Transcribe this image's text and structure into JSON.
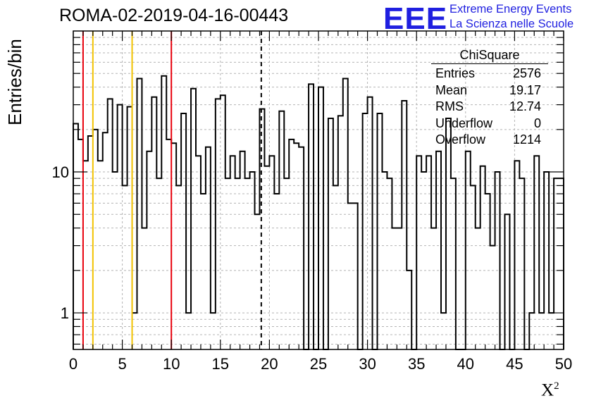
{
  "header": {
    "run_title": "ROMA-02-2019-04-16-00443",
    "logo_text": "EEE",
    "logo_line1": "Extreme Energy Events",
    "logo_line2": "La Scienza nelle Scuole"
  },
  "stats_box": {
    "title": "ChiSquare",
    "rows": [
      {
        "label": "Entries",
        "value": "2576"
      },
      {
        "label": "Mean",
        "value": "19.17"
      },
      {
        "label": "RMS",
        "value": "12.74"
      },
      {
        "label": "Underflow",
        "value": "0"
      },
      {
        "label": "Overflow",
        "value": "1214"
      }
    ]
  },
  "colors": {
    "red_line": "#e8000b",
    "yellow_line": "#f2c200",
    "histogram": "#000000",
    "grid": "#b4b4b4",
    "logo": "#1f1fe0"
  },
  "chart_data": {
    "type": "histogram",
    "title": "ROMA-02-2019-04-16-00443",
    "xlabel": "X",
    "xlabel_sup": "2",
    "ylabel": "Entries/bin",
    "xlim": [
      0,
      50
    ],
    "ylim": [
      0.55,
      100
    ],
    "y_scale": "log",
    "grid": true,
    "x_ticks": [
      "0",
      "5",
      "10",
      "15",
      "20",
      "25",
      "30",
      "35",
      "40",
      "45",
      "50"
    ],
    "y_ticks": [
      "1",
      "10"
    ],
    "bin_width": 0.5,
    "bin_counts": [
      22,
      17,
      12,
      18,
      20,
      12,
      19,
      33,
      10,
      30,
      8,
      29,
      1,
      46,
      4,
      14,
      34,
      9,
      48,
      17,
      16,
      8,
      26,
      1,
      39,
      13,
      7,
      15,
      1,
      33,
      35,
      9,
      13,
      9,
      14,
      9,
      10,
      5,
      28,
      11,
      13,
      7,
      27,
      9,
      17,
      16,
      15,
      0,
      42,
      0,
      40,
      0,
      24,
      8,
      25,
      46,
      6,
      6,
      0,
      26,
      34,
      0,
      26,
      10,
      9,
      4,
      4,
      32,
      2,
      0,
      13,
      10,
      13,
      4,
      14,
      1,
      24,
      9,
      0,
      0,
      14,
      8,
      4,
      11,
      7,
      3,
      10,
      0,
      5,
      0,
      12,
      9,
      0,
      1,
      13,
      1,
      10,
      1,
      9,
      9
    ],
    "vertical_lines": [
      {
        "x": 1,
        "color": "red",
        "style": "solid"
      },
      {
        "x": 2,
        "color": "yellow",
        "style": "solid"
      },
      {
        "x": 6,
        "color": "yellow",
        "style": "solid"
      },
      {
        "x": 10,
        "color": "red",
        "style": "solid"
      },
      {
        "x": 19.17,
        "color": "black",
        "style": "dashed"
      }
    ]
  }
}
